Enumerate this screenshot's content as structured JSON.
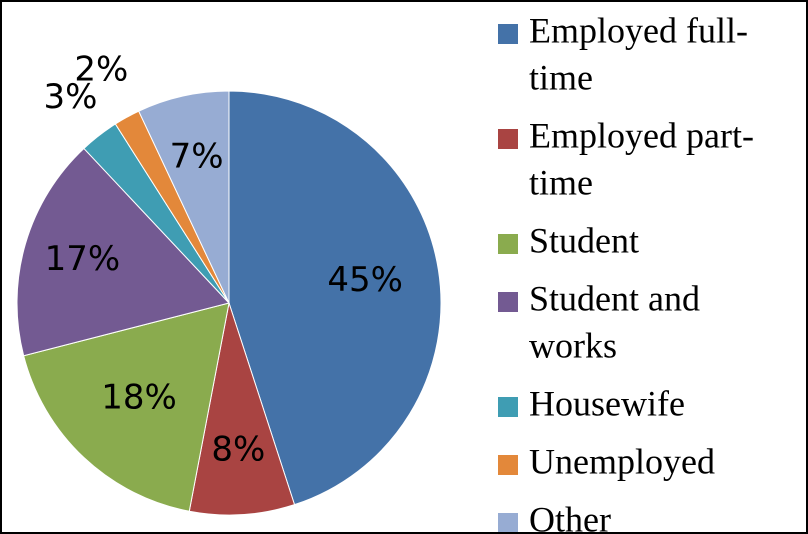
{
  "chart_data": {
    "type": "pie",
    "title": "",
    "slices": [
      {
        "label": "Employed full-time",
        "legend_lines": [
          "Employed full-",
          "time"
        ],
        "value": 45,
        "display": "45%",
        "color": "#4472a8"
      },
      {
        "label": "Employed part-time",
        "legend_lines": [
          "Employed part-",
          "time"
        ],
        "value": 8,
        "display": "8%",
        "color": "#a94442"
      },
      {
        "label": "Student",
        "legend_lines": [
          "Student"
        ],
        "value": 18,
        "display": "18%",
        "color": "#8aab4e"
      },
      {
        "label": "Student and works",
        "legend_lines": [
          "Student and",
          "works"
        ],
        "value": 17,
        "display": "17%",
        "color": "#735a92"
      },
      {
        "label": "Housewife",
        "legend_lines": [
          "Housewife"
        ],
        "value": 3,
        "display": "3%",
        "color": "#3f9db3"
      },
      {
        "label": "Unemployed",
        "legend_lines": [
          "Unemployed"
        ],
        "value": 2,
        "display": "2%",
        "color": "#e3883a"
      },
      {
        "label": "Other",
        "legend_lines": [
          "Other"
        ],
        "value": 7,
        "display": "7%",
        "color": "#97acd3"
      }
    ],
    "start_angle_deg": 0,
    "direction": "clockwise",
    "legend_position": "right"
  }
}
